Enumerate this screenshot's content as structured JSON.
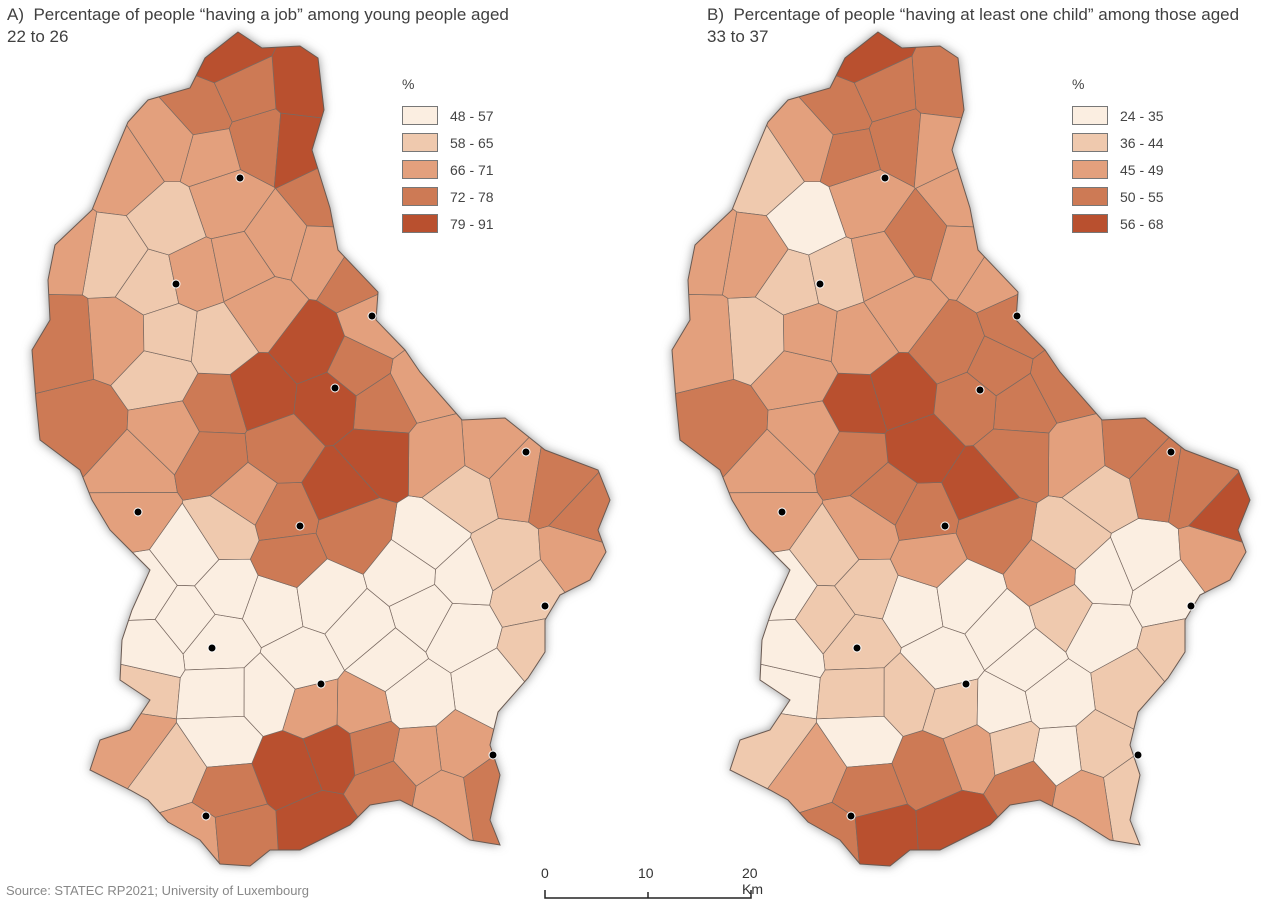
{
  "panels": [
    {
      "id": "A",
      "title": "A)  Percentage of people “having a job” among young people aged 22 to 26",
      "legend_unit": "%",
      "legend": [
        {
          "label": "48 - 57",
          "color": "#fbeee1"
        },
        {
          "label": "58 - 65",
          "color": "#efc9ae"
        },
        {
          "label": "66 - 71",
          "color": "#e3a07d"
        },
        {
          "label": "72 - 78",
          "color": "#cd7a55"
        },
        {
          "label": "79 - 91",
          "color": "#b9502f"
        }
      ]
    },
    {
      "id": "B",
      "title": "B)  Percentage of people “having at least one child” among those aged 33 to 37",
      "legend_unit": "%",
      "legend": [
        {
          "label": "24 - 35",
          "color": "#fbeee1"
        },
        {
          "label": "36 - 44",
          "color": "#efc9ae"
        },
        {
          "label": "45 - 49",
          "color": "#e3a07d"
        },
        {
          "label": "50 - 55",
          "color": "#cd7a55"
        },
        {
          "label": "56 - 68",
          "color": "#b9502f"
        }
      ]
    }
  ],
  "scalebar": {
    "labels": [
      "0",
      "10",
      "20 Km"
    ]
  },
  "source": "Source: STATEC RP2021; University of Luxembourg"
}
